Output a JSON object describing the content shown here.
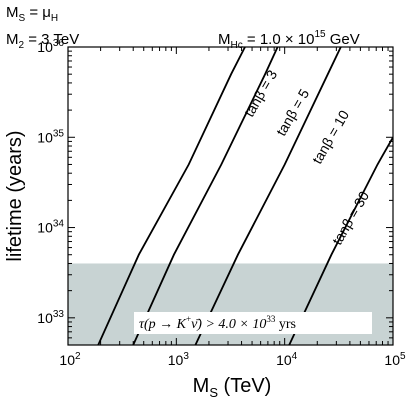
{
  "chart_data": {
    "type": "line",
    "annotations_top_left": [
      "M_S = μ_H",
      "M_2 = 3 TeV"
    ],
    "annotation_top_right": "M_Hc = 1.0 × 10^15 GeV",
    "xlabel": "M_S (TeV)",
    "ylabel": "lifetime (years)",
    "xscale": "log",
    "yscale": "log",
    "xlim": [
      100,
      100000
    ],
    "ylim": [
      5e+32,
      1e+36
    ],
    "x_ticks": [
      {
        "value": 100,
        "label": "10^2"
      },
      {
        "value": 1000,
        "label": "10^3"
      },
      {
        "value": 10000,
        "label": "10^4"
      },
      {
        "value": 100000,
        "label": "10^5"
      }
    ],
    "y_ticks": [
      {
        "value": 1e+33,
        "label": "10^33"
      },
      {
        "value": 1e+34,
        "label": "10^34"
      },
      {
        "value": 1e+35,
        "label": "10^35"
      },
      {
        "value": 1e+36,
        "label": "10^36"
      }
    ],
    "series": [
      {
        "name": "tanβ = 3",
        "points": [
          [
            190,
            5e+32
          ],
          [
            450,
            5e+33
          ],
          [
            1300,
            5e+34
          ],
          [
            3200,
            5e+35
          ],
          [
            4300,
            1e+36
          ]
        ]
      },
      {
        "name": "tanβ = 5",
        "points": [
          [
            400,
            5e+32
          ],
          [
            950,
            5e+33
          ],
          [
            2600,
            5e+34
          ],
          [
            6600,
            5e+35
          ],
          [
            8600,
            1e+36
          ]
        ]
      },
      {
        "name": "tanβ = 10",
        "points": [
          [
            1500,
            5e+32
          ],
          [
            3700,
            5e+33
          ],
          [
            10000,
            5e+34
          ],
          [
            25000,
            5e+35
          ],
          [
            33000,
            1e+36
          ]
        ]
      },
      {
        "name": "tanβ = 30",
        "points": [
          [
            11000,
            5e+32
          ],
          [
            27000,
            5e+33
          ],
          [
            72000,
            5e+34
          ],
          [
            100000,
            1e+35
          ]
        ]
      }
    ],
    "excluded_region": {
      "y_from": 5e+32,
      "y_to": 4e+33,
      "color": "#c8d3d3"
    },
    "bound_label": "τ(p → K⁺ν̄) > 4.0 × 10³³ yrs",
    "grid": false,
    "legend": "none"
  }
}
